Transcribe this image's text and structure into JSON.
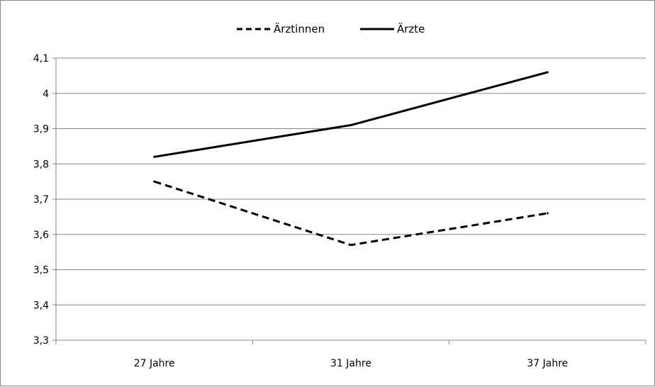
{
  "chart_data": {
    "type": "line",
    "title": "",
    "xlabel": "",
    "ylabel": "",
    "categories": [
      "27 Jahre",
      "31 Jahre",
      "37 Jahre"
    ],
    "ylim": [
      3.3,
      4.1
    ],
    "y_ticks": [
      "3,3",
      "3,4",
      "3,5",
      "3,6",
      "3,7",
      "3,8",
      "3,9",
      "4",
      "4,1"
    ],
    "grid": true,
    "legend_position": "top",
    "series": [
      {
        "name": "Ärztinnen",
        "values": [
          3.75,
          3.57,
          3.66
        ],
        "style": "dashed",
        "color": "#000000"
      },
      {
        "name": "Ärzte",
        "values": [
          3.82,
          3.91,
          4.06
        ],
        "style": "solid",
        "color": "#000000"
      }
    ]
  }
}
